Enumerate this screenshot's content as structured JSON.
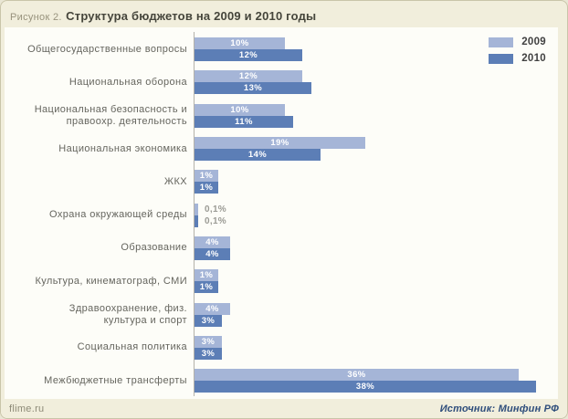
{
  "window": {
    "title_prefix": "Рисунок 2.",
    "title": "Структура бюджетов на 2009 и 2010 годы"
  },
  "footer": {
    "left": "flime.ru",
    "right": "Источник: Минфин РФ"
  },
  "chart_data": {
    "type": "bar",
    "orientation": "horizontal",
    "title": "Структура бюджетов на 2009 и 2010 годы",
    "categories": [
      "Общегосударственные вопросы",
      "Национальная оборона",
      "Национальная безопасность и\nправоохр. деятельность",
      "Национальная экономика",
      "ЖКХ",
      "Охрана окружающей среды",
      "Образование",
      "Культура, кинематограф, СМИ",
      "Здравоохранение, физ.\nкультура и спорт",
      "Социальная политика",
      "Межбюджетные трансферты"
    ],
    "series": [
      {
        "name": "2009",
        "color": "#a5b5d7",
        "values": [
          10,
          12,
          10,
          19,
          1,
          0.1,
          4,
          1,
          4,
          3,
          36
        ],
        "labels": [
          "10%",
          "12%",
          "10%",
          "19%",
          "1%",
          "0,1%",
          "4%",
          "1%",
          "4%",
          "3%",
          "36%"
        ]
      },
      {
        "name": "2010",
        "color": "#5c7eb6",
        "values": [
          12,
          13,
          11,
          14,
          1,
          0.1,
          4,
          1,
          3,
          3,
          38
        ],
        "labels": [
          "12%",
          "13%",
          "11%",
          "14%",
          "1%",
          "0,1%",
          "4%",
          "1%",
          "3%",
          "3%",
          "38%"
        ]
      }
    ],
    "value_unit": "%",
    "xlim": [
      0,
      40
    ],
    "legend_position": "top-right",
    "grid": false,
    "bar_label_inside_color": "#ffffff",
    "bar_label_outside_color": "#9b9b95"
  }
}
